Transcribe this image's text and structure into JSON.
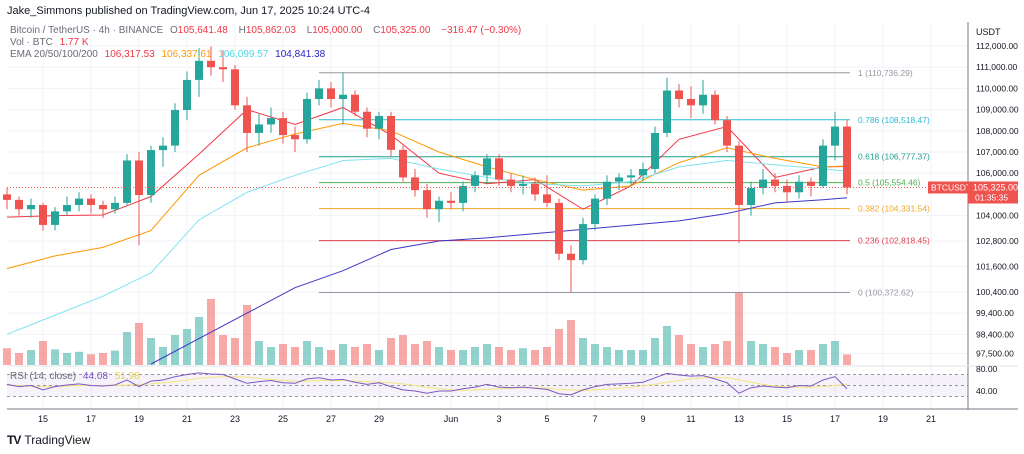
{
  "header": {
    "published": "Jake_Simmons published on TradingView.com, Jun 17, 2025 10:24 UTC-4"
  },
  "legend": {
    "symbol": "Bitcoin / TetherUS · 4h · BINANCE",
    "o_label": "O",
    "o": "105,641.48",
    "h_label": "H",
    "h": "105,862.03",
    "l_label": "L",
    "l": "105,000.00",
    "c_label": "C",
    "c": "105,325.00",
    "change": "−316.47 (−0.30%)",
    "vol_label": "Vol · BTC",
    "vol": "1.77 K",
    "ema_label": "EMA 20/50/100/200",
    "ema20": "106,317.53",
    "ema50": "106,337.61",
    "ema100": "106,099.57",
    "ema200": "104,841.38"
  },
  "rsi_legend": {
    "label": "RSI (14, close)",
    "value": "44.08",
    "ma": "51.98"
  },
  "price_axis": {
    "currency": "USDT",
    "ticks": [
      112000,
      111000,
      110000,
      109000,
      108000,
      107000,
      106000,
      104000,
      102800,
      101600,
      100400,
      99400,
      98400,
      97500
    ],
    "tick_labels": [
      "112,000.00",
      "111,000.00",
      "110,000.00",
      "109,000.00",
      "108,000.00",
      "107,000.00",
      "106,000.00",
      "104,000.00",
      "102,800.00",
      "101,600.00",
      "100,400.00",
      "99,400.00",
      "98,400.00",
      "97,500.00"
    ],
    "last_price_label": "105,325.00",
    "countdown": "01:35:35",
    "symbol_tag": "BTCUSDT"
  },
  "rsi_axis": {
    "ticks": [
      80,
      40
    ],
    "tick_labels": [
      "80.00",
      "40.00"
    ]
  },
  "time_axis": {
    "ticks": [
      "May 15",
      "May 17",
      "May 19",
      "May 21",
      "May 23",
      "May 25",
      "May 27",
      "May 29",
      "Jun 1",
      "Jun 3",
      "Jun 5",
      "Jun 7",
      "Jun 9",
      "Jun 11",
      "Jun 13",
      "Jun 15",
      "Jun 17",
      "Jun 19",
      "Jun 21"
    ],
    "tick_labels": [
      "15",
      "17",
      "19",
      "21",
      "23",
      "25",
      "27",
      "29",
      "Jun",
      "3",
      "5",
      "7",
      "9",
      "11",
      "13",
      "15",
      "17",
      "19",
      "21"
    ]
  },
  "colors": {
    "up": "#26a69a",
    "down": "#ef5350",
    "ema20": "#f23645",
    "ema50": "#ff9800",
    "ema100": "#7fe3ee",
    "ema200": "#3d35c8",
    "rsi": "#7e57c2",
    "rsi_ma": "#f5e47a"
  },
  "chart_data": {
    "type": "candlestick",
    "symbol": "BTCUSDT",
    "ylim": [
      97000,
      112300
    ],
    "candles": [
      [
        "May 13 12:00",
        105000,
        105300,
        104300,
        104740
      ],
      [
        "May 14 00:00",
        104740,
        104900,
        104000,
        104300
      ],
      [
        "May 14 12:00",
        104300,
        104800,
        103900,
        104500
      ],
      [
        "May 15 00:00",
        104500,
        104600,
        103300,
        103560
      ],
      [
        "May 15 12:00",
        103560,
        104400,
        103300,
        104200
      ],
      [
        "May 16 00:00",
        104200,
        104900,
        104000,
        104500
      ],
      [
        "May 16 12:00",
        104500,
        105100,
        104200,
        104800
      ],
      [
        "May 17 00:00",
        104800,
        105000,
        104100,
        104500
      ],
      [
        "May 17 12:00",
        104500,
        104700,
        103900,
        104300
      ],
      [
        "May 18 00:00",
        104300,
        104900,
        104100,
        104600
      ],
      [
        "May 18 12:00",
        104600,
        106900,
        104500,
        106600
      ],
      [
        "May 19 00:00",
        106600,
        107000,
        102600,
        104970
      ],
      [
        "May 19 12:00",
        104970,
        107300,
        104600,
        107090
      ],
      [
        "May 20 00:00",
        107090,
        107700,
        106300,
        107300
      ],
      [
        "May 20 12:00",
        107300,
        109300,
        107000,
        108980
      ],
      [
        "May 21 00:00",
        108980,
        110800,
        108500,
        110400
      ],
      [
        "May 21 12:00",
        110400,
        111900,
        109600,
        111300
      ],
      [
        "May 22 00:00",
        111300,
        111980,
        110600,
        111000
      ],
      [
        "May 22 12:00",
        111000,
        111800,
        110300,
        110900
      ],
      [
        "May 23 00:00",
        110900,
        111100,
        109000,
        109200
      ],
      [
        "May 23 12:00",
        109200,
        109600,
        107000,
        107900
      ],
      [
        "May 24 00:00",
        107900,
        108800,
        107300,
        108300
      ],
      [
        "May 24 12:00",
        108300,
        109100,
        107900,
        108600
      ],
      [
        "May 25 00:00",
        108600,
        108900,
        107400,
        107800
      ],
      [
        "May 25 12:00",
        107800,
        108200,
        107000,
        107600
      ],
      [
        "May 26 00:00",
        107600,
        109800,
        107400,
        109500
      ],
      [
        "May 26 12:00",
        109500,
        110400,
        109200,
        110000
      ],
      [
        "May 27 00:00",
        110000,
        110300,
        109100,
        109500
      ],
      [
        "May 27 12:00",
        109500,
        110750,
        108300,
        109700
      ],
      [
        "May 28 00:00",
        109700,
        109900,
        108700,
        108900
      ],
      [
        "May 28 12:00",
        108900,
        109100,
        107700,
        108100
      ],
      [
        "May 29 00:00",
        108100,
        108900,
        107600,
        108700
      ],
      [
        "May 29 12:00",
        108700,
        108900,
        106800,
        107100
      ],
      [
        "May 30 00:00",
        107100,
        107300,
        105600,
        105800
      ],
      [
        "May 30 12:00",
        105800,
        106200,
        104900,
        105200
      ],
      [
        "May 31 00:00",
        105200,
        105500,
        103900,
        104300
      ],
      [
        "May 31 12:00",
        104300,
        104900,
        103700,
        104700
      ],
      [
        "Jun 1 00:00",
        104700,
        105100,
        104300,
        104600
      ],
      [
        "Jun 1 12:00",
        104600,
        105600,
        104200,
        105400
      ],
      [
        "Jun 2 00:00",
        105400,
        106100,
        105100,
        105900
      ],
      [
        "Jun 2 12:00",
        105900,
        106900,
        105500,
        106700
      ],
      [
        "Jun 3 00:00",
        106700,
        106900,
        105400,
        105700
      ],
      [
        "Jun 3 12:00",
        105700,
        106000,
        105100,
        105400
      ],
      [
        "Jun 4 00:00",
        105400,
        105900,
        105000,
        105500
      ],
      [
        "Jun 4 12:00",
        105500,
        105800,
        104700,
        105000
      ],
      [
        "Jun 5 00:00",
        105000,
        105900,
        104400,
        104600
      ],
      [
        "Jun 5 12:00",
        104600,
        104800,
        101900,
        102200
      ],
      [
        "Jun 6 00:00",
        102200,
        102600,
        100370,
        101900
      ],
      [
        "Jun 6 12:00",
        101900,
        103900,
        101700,
        103600
      ],
      [
        "Jun 7 00:00",
        103600,
        105000,
        103300,
        104800
      ],
      [
        "Jun 7 12:00",
        104800,
        105900,
        104500,
        105600
      ],
      [
        "Jun 8 00:00",
        105600,
        106000,
        105200,
        105800
      ],
      [
        "Jun 8 12:00",
        105800,
        106200,
        105400,
        105900
      ],
      [
        "Jun 9 00:00",
        105900,
        106500,
        105600,
        106200
      ],
      [
        "Jun 9 12:00",
        106200,
        108200,
        106000,
        107900
      ],
      [
        "Jun 10 00:00",
        107900,
        110500,
        107700,
        109900
      ],
      [
        "Jun 10 12:00",
        109900,
        110200,
        109100,
        109500
      ],
      [
        "Jun 11 00:00",
        109500,
        110100,
        108600,
        109200
      ],
      [
        "Jun 11 12:00",
        109200,
        110400,
        108800,
        109700
      ],
      [
        "Jun 12 00:00",
        109700,
        109900,
        108300,
        108500
      ],
      [
        "Jun 12 12:00",
        108500,
        108700,
        107000,
        107300
      ],
      [
        "Jun 13 00:00",
        107300,
        107500,
        102700,
        104500
      ],
      [
        "Jun 13 12:00",
        104500,
        105600,
        104000,
        105300
      ],
      [
        "Jun 14 00:00",
        105300,
        106200,
        105000,
        105700
      ],
      [
        "Jun 14 12:00",
        105700,
        106000,
        105100,
        105400
      ],
      [
        "Jun 15 00:00",
        105400,
        105700,
        104600,
        105100
      ],
      [
        "Jun 15 12:00",
        105100,
        105900,
        104800,
        105600
      ],
      [
        "Jun 16 00:00",
        105600,
        105800,
        104900,
        105400
      ],
      [
        "Jun 16 12:00",
        105400,
        107600,
        105300,
        107300
      ],
      [
        "Jun 17 00:00",
        107300,
        108900,
        106600,
        108200
      ],
      [
        "Jun 17 12:00",
        108200,
        108500,
        105000,
        105325
      ]
    ],
    "volume_k_btc": [
      2.8,
      2.0,
      2.5,
      4.0,
      2.6,
      2.0,
      2.2,
      1.8,
      2.0,
      2.4,
      5.5,
      7.0,
      4.5,
      3.0,
      5.0,
      6.0,
      8.0,
      11.0,
      5.0,
      4.5,
      10.0,
      4.0,
      3.0,
      3.5,
      3.0,
      4.0,
      3.0,
      2.5,
      3.5,
      3.0,
      3.5,
      2.5,
      4.5,
      5.0,
      3.5,
      4.0,
      3.0,
      2.5,
      2.5,
      3.0,
      3.5,
      3.0,
      2.5,
      2.8,
      2.5,
      3.0,
      6.0,
      7.5,
      4.5,
      3.5,
      3.0,
      2.5,
      2.5,
      2.5,
      4.5,
      6.5,
      5.0,
      3.5,
      3.0,
      3.5,
      4.0,
      12.0,
      4.0,
      3.5,
      3.0,
      2.0,
      2.5,
      2.5,
      3.5,
      4.0,
      1.77
    ],
    "ema": [
      {
        "name": "EMA 20",
        "color": "#f23645",
        "points": [
          [
            "May 13 12:00",
            103930
          ],
          [
            "May 15 12:00",
            104000
          ],
          [
            "May 17 12:00",
            104030
          ],
          [
            "May 19 12:00",
            104900
          ],
          [
            "May 21 12:00",
            106900
          ],
          [
            "May 23 12:00",
            109000
          ],
          [
            "May 25 12:00",
            108300
          ],
          [
            "May 27 12:00",
            109100
          ],
          [
            "May 29 12:00",
            107800
          ],
          [
            "May 31 12:00",
            106000
          ],
          [
            "Jun 2 12:00",
            105500
          ],
          [
            "Jun 4 12:00",
            105700
          ],
          [
            "Jun 6 12:00",
            104300
          ],
          [
            "Jun 8 12:00",
            105400
          ],
          [
            "Jun 10 12:00",
            107600
          ],
          [
            "Jun 12 12:00",
            108200
          ],
          [
            "Jun 14 12:00",
            105800
          ],
          [
            "Jun 16 12:00",
            106300
          ],
          [
            "Jun 17 12:00",
            106317.53
          ]
        ]
      },
      {
        "name": "EMA 50",
        "color": "#ff9800",
        "points": [
          [
            "May 13 12:00",
            101500
          ],
          [
            "May 15 12:00",
            102100
          ],
          [
            "May 17 12:00",
            102500
          ],
          [
            "May 19 12:00",
            103300
          ],
          [
            "May 21 12:00",
            105900
          ],
          [
            "May 23 12:00",
            107200
          ],
          [
            "May 25 12:00",
            107850
          ],
          [
            "May 27 12:00",
            108350
          ],
          [
            "May 29 12:00",
            108000
          ],
          [
            "May 31 12:00",
            107000
          ],
          [
            "Jun 2 12:00",
            106300
          ],
          [
            "Jun 4 12:00",
            105700
          ],
          [
            "Jun 6 12:00",
            105200
          ],
          [
            "Jun 8 12:00",
            105400
          ],
          [
            "Jun 10 12:00",
            106500
          ],
          [
            "Jun 12 12:00",
            107200
          ],
          [
            "Jun 14 12:00",
            106700
          ],
          [
            "Jun 16 12:00",
            106300
          ],
          [
            "Jun 17 12:00",
            106337.61
          ]
        ]
      },
      {
        "name": "EMA 100",
        "color": "#7fe3ee",
        "points": [
          [
            "May 13 12:00",
            98400
          ],
          [
            "May 15 12:00",
            99300
          ],
          [
            "May 17 12:00",
            100200
          ],
          [
            "May 19 12:00",
            101300
          ],
          [
            "May 21 12:00",
            103800
          ],
          [
            "May 23 12:00",
            105100
          ],
          [
            "May 25 12:00",
            105900
          ],
          [
            "May 27 12:00",
            106600
          ],
          [
            "May 29 12:00",
            106700
          ],
          [
            "May 31 12:00",
            106200
          ],
          [
            "Jun 2 12:00",
            105800
          ],
          [
            "Jun 4 12:00",
            105500
          ],
          [
            "Jun 6 12:00",
            105400
          ],
          [
            "Jun 8 12:00",
            105600
          ],
          [
            "Jun 10 12:00",
            106300
          ],
          [
            "Jun 12 12:00",
            106600
          ],
          [
            "Jun 14 12:00",
            106400
          ],
          [
            "Jun 16 12:00",
            106200
          ],
          [
            "Jun 17 12:00",
            106099.57
          ]
        ]
      },
      {
        "name": "EMA 200",
        "color": "#3d35c8",
        "points": [
          [
            "May 19 12:00",
            97000
          ],
          [
            "May 21 12:00",
            98200
          ],
          [
            "May 23 12:00",
            99400
          ],
          [
            "May 25 12:00",
            100600
          ],
          [
            "May 27 12:00",
            101400
          ],
          [
            "May 29 12:00",
            102400
          ],
          [
            "May 31 12:00",
            102800
          ],
          [
            "Jun 2 12:00",
            102950
          ],
          [
            "Jun 4 12:00",
            103150
          ],
          [
            "Jun 6 12:00",
            103350
          ],
          [
            "Jun 8 12:00",
            103550
          ],
          [
            "Jun 10 12:00",
            103750
          ],
          [
            "Jun 12 12:00",
            104100
          ],
          [
            "Jun 14 12:00",
            104600
          ],
          [
            "Jun 16 12:00",
            104750
          ],
          [
            "Jun 17 12:00",
            104841.38
          ]
        ]
      }
    ],
    "fib_levels": [
      {
        "ratio": "1",
        "price": 110736.29,
        "label": "1 (110,736.29)",
        "color": "#9598a1"
      },
      {
        "ratio": "0.786",
        "price": 108518.47,
        "label": "0.786 (108,518.47)",
        "color": "#2ab8d4"
      },
      {
        "ratio": "0.618",
        "price": 106777.37,
        "label": "0.618 (106,777.37)",
        "color": "#1e9e8c"
      },
      {
        "ratio": "0.5",
        "price": 105554.46,
        "label": "0.5 (105,554.46)",
        "color": "#4caf50"
      },
      {
        "ratio": "0.382",
        "price": 104331.54,
        "label": "0.382 (104,331.54)",
        "color": "#f5a623"
      },
      {
        "ratio": "0.236",
        "price": 102818.45,
        "label": "0.236 (102,818.45)",
        "color": "#e0404a"
      },
      {
        "ratio": "0",
        "price": 100372.62,
        "label": "0 (100,372.62)",
        "color": "#9598a1"
      }
    ],
    "fib_start": "May 26 12:00",
    "rsi": [
      52,
      48,
      50,
      42,
      48,
      51,
      53,
      50,
      49,
      51,
      60,
      48,
      58,
      60,
      66,
      70,
      73,
      71,
      70,
      62,
      54,
      57,
      59,
      55,
      54,
      62,
      64,
      60,
      61,
      56,
      52,
      55,
      48,
      42,
      40,
      36,
      40,
      40,
      44,
      47,
      52,
      47,
      46,
      47,
      45,
      43,
      35,
      33,
      42,
      48,
      52,
      53,
      54,
      56,
      64,
      72,
      69,
      67,
      68,
      62,
      55,
      36,
      46,
      49,
      47,
      46,
      50,
      49,
      60,
      66,
      44.08
    ],
    "rsi_ma": [
      50,
      50,
      49,
      48,
      48,
      49,
      50,
      50,
      50,
      50,
      51,
      52,
      53,
      55,
      57,
      60,
      63,
      65,
      66,
      66,
      65,
      63,
      61,
      59,
      58,
      58,
      59,
      59,
      59,
      58,
      57,
      56,
      55,
      53,
      50,
      47,
      44,
      42,
      41,
      42,
      43,
      44,
      45,
      46,
      46,
      45,
      43,
      42,
      41,
      42,
      43,
      45,
      47,
      49,
      52,
      56,
      59,
      62,
      64,
      65,
      64,
      60,
      56,
      52,
      49,
      48,
      47,
      47,
      48,
      50,
      51.98
    ],
    "rsi_bands": [
      70,
      50,
      30
    ],
    "last_price": 105325.0
  },
  "footer": {
    "logo_text": "TradingView"
  }
}
